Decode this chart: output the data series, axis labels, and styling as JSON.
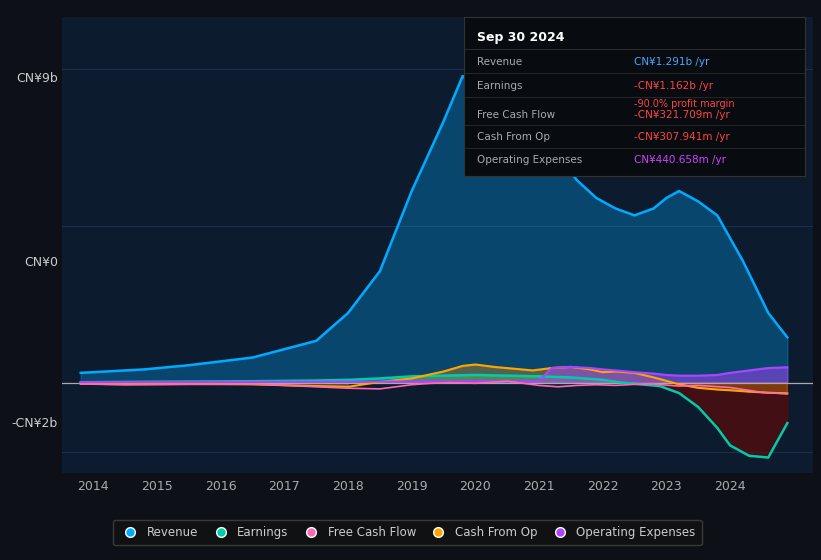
{
  "bg_color": "#0d1117",
  "plot_bg_color": "#0d1b2e",
  "grid_color": "#1e3050",
  "title": "Sep 30 2024",
  "ylabel_top": "CN¥9b",
  "ylabel_zero": "CN¥0",
  "ylabel_bottom": "-CN¥2b",
  "xlim": [
    2013.5,
    2025.3
  ],
  "ylim": [
    -2600000000.0,
    10500000000.0
  ],
  "revenue_x": [
    2013.8,
    2014.2,
    2014.8,
    2015.5,
    2016.5,
    2017.5,
    2018.0,
    2018.5,
    2019.0,
    2019.5,
    2019.8,
    2020.2,
    2020.5,
    2020.8,
    2021.0,
    2021.3,
    2021.6,
    2021.9,
    2022.2,
    2022.5,
    2022.8,
    2023.0,
    2023.2,
    2023.5,
    2023.8,
    2024.2,
    2024.6,
    2024.9
  ],
  "revenue_y": [
    280000000.0,
    320000000.0,
    380000000.0,
    500000000.0,
    720000000.0,
    1200000000.0,
    2000000000.0,
    3200000000.0,
    5500000000.0,
    7500000000.0,
    8800000000.0,
    8200000000.0,
    7500000000.0,
    6800000000.0,
    6200000000.0,
    6500000000.0,
    5800000000.0,
    5300000000.0,
    5000000000.0,
    4800000000.0,
    5000000000.0,
    5300000000.0,
    5500000000.0,
    5200000000.0,
    4800000000.0,
    3500000000.0,
    2000000000.0,
    1300000000.0
  ],
  "earnings_x": [
    2013.8,
    2014.5,
    2015.5,
    2016.5,
    2017.5,
    2018.0,
    2018.5,
    2019.0,
    2019.5,
    2020.0,
    2020.5,
    2021.0,
    2021.5,
    2022.0,
    2022.3,
    2022.6,
    2022.9,
    2023.2,
    2023.5,
    2023.8,
    2024.0,
    2024.3,
    2024.6,
    2024.9
  ],
  "earnings_y": [
    10000000.0,
    20000000.0,
    30000000.0,
    40000000.0,
    60000000.0,
    80000000.0,
    120000000.0,
    180000000.0,
    200000000.0,
    220000000.0,
    200000000.0,
    180000000.0,
    150000000.0,
    80000000.0,
    0.0,
    -50000000.0,
    -100000000.0,
    -300000000.0,
    -700000000.0,
    -1300000000.0,
    -1800000000.0,
    -2100000000.0,
    -2150000000.0,
    -1162000000.0
  ],
  "fcf_x": [
    2013.8,
    2014.5,
    2015.5,
    2016.5,
    2017.0,
    2017.5,
    2018.0,
    2018.5,
    2019.0,
    2019.3,
    2019.6,
    2020.0,
    2020.5,
    2021.0,
    2021.3,
    2021.6,
    2021.9,
    2022.2,
    2022.5,
    2022.8,
    2023.2,
    2023.5,
    2024.0,
    2024.5,
    2024.9
  ],
  "fcf_y": [
    -40000000.0,
    -60000000.0,
    -50000000.0,
    -40000000.0,
    -80000000.0,
    -120000000.0,
    -160000000.0,
    -180000000.0,
    -60000000.0,
    -20000000.0,
    0.0,
    -20000000.0,
    40000000.0,
    -80000000.0,
    -120000000.0,
    -80000000.0,
    -60000000.0,
    -80000000.0,
    -50000000.0,
    -40000000.0,
    -100000000.0,
    -80000000.0,
    -140000000.0,
    -280000000.0,
    -322000000.0
  ],
  "cashfromop_x": [
    2013.8,
    2014.5,
    2015.5,
    2016.5,
    2017.5,
    2018.0,
    2018.5,
    2019.0,
    2019.5,
    2019.8,
    2020.0,
    2020.3,
    2020.6,
    2020.9,
    2021.2,
    2021.5,
    2021.8,
    2022.0,
    2022.2,
    2022.5,
    2022.8,
    2023.0,
    2023.2,
    2023.5,
    2023.8,
    2024.0,
    2024.3,
    2024.6,
    2024.9
  ],
  "cashfromop_y": [
    -30000000.0,
    -50000000.0,
    -40000000.0,
    -50000000.0,
    -100000000.0,
    -120000000.0,
    20000000.0,
    120000000.0,
    320000000.0,
    480000000.0,
    520000000.0,
    450000000.0,
    400000000.0,
    350000000.0,
    420000000.0,
    450000000.0,
    380000000.0,
    300000000.0,
    320000000.0,
    280000000.0,
    150000000.0,
    50000000.0,
    -50000000.0,
    -150000000.0,
    -200000000.0,
    -220000000.0,
    -260000000.0,
    -290000000.0,
    -308000000.0
  ],
  "opex_x": [
    2013.8,
    2014.5,
    2015.5,
    2016.5,
    2017.5,
    2018.5,
    2019.0,
    2019.5,
    2020.0,
    2020.3,
    2020.5,
    2020.8,
    2021.0,
    2021.2,
    2021.5,
    2021.8,
    2022.0,
    2022.2,
    2022.5,
    2022.8,
    2023.0,
    2023.2,
    2023.5,
    2023.8,
    2024.0,
    2024.3,
    2024.6,
    2024.9
  ],
  "opex_y": [
    10000000.0,
    15000000.0,
    15000000.0,
    20000000.0,
    25000000.0,
    30000000.0,
    35000000.0,
    35000000.0,
    40000000.0,
    40000000.0,
    40000000.0,
    35000000.0,
    50000000.0,
    420000000.0,
    450000000.0,
    420000000.0,
    380000000.0,
    350000000.0,
    300000000.0,
    260000000.0,
    220000000.0,
    200000000.0,
    200000000.0,
    220000000.0,
    280000000.0,
    350000000.0,
    420000000.0,
    441000000.0
  ],
  "colors": {
    "revenue": "#00aaff",
    "earnings": "#00ccaa",
    "fcf": "#ff69b4",
    "cashfromop": "#ffa500",
    "opex": "#aa44ff"
  },
  "legend": [
    {
      "label": "Revenue",
      "color": "#00aaff"
    },
    {
      "label": "Earnings",
      "color": "#00ccaa"
    },
    {
      "label": "Free Cash Flow",
      "color": "#ff69b4"
    },
    {
      "label": "Cash From Op",
      "color": "#ffa500"
    },
    {
      "label": "Operating Expenses",
      "color": "#aa44ff"
    }
  ],
  "table_rows": [
    {
      "label": "Revenue",
      "value": "CN¥1.291b /yr",
      "val_color": "#4da6ff",
      "sub": null,
      "sub_color": null
    },
    {
      "label": "Earnings",
      "value": "-CN¥1.162b /yr",
      "val_color": "#ff4444",
      "sub": "-90.0% profit margin",
      "sub_color": "#ff4444"
    },
    {
      "label": "Free Cash Flow",
      "value": "-CN¥321.709m /yr",
      "val_color": "#ff4444",
      "sub": null,
      "sub_color": null
    },
    {
      "label": "Cash From Op",
      "value": "-CN¥307.941m /yr",
      "val_color": "#ff4444",
      "sub": null,
      "sub_color": null
    },
    {
      "label": "Operating Expenses",
      "value": "CN¥440.658m /yr",
      "val_color": "#cc44ff",
      "sub": null,
      "sub_color": null
    }
  ]
}
